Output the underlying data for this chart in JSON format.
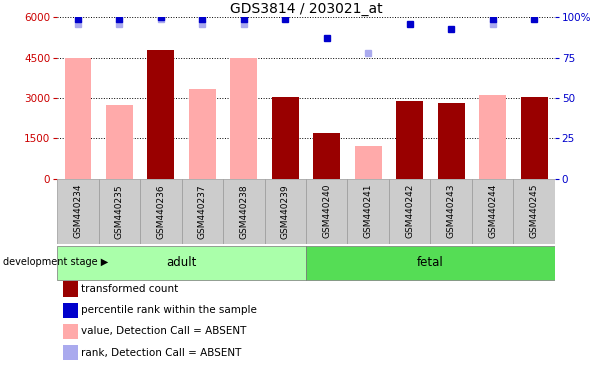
{
  "title": "GDS3814 / 203021_at",
  "samples": [
    "GSM440234",
    "GSM440235",
    "GSM440236",
    "GSM440237",
    "GSM440238",
    "GSM440239",
    "GSM440240",
    "GSM440241",
    "GSM440242",
    "GSM440243",
    "GSM440244",
    "GSM440245"
  ],
  "transformed_count": [
    null,
    null,
    4800,
    null,
    null,
    3050,
    1700,
    null,
    2900,
    2800,
    null,
    3050
  ],
  "value_absent": [
    4500,
    2750,
    null,
    3350,
    4500,
    null,
    null,
    1200,
    null,
    null,
    3100,
    null
  ],
  "percentile_rank": [
    99,
    99,
    100,
    99,
    99,
    99,
    87,
    null,
    96,
    93,
    99,
    99
  ],
  "rank_absent": [
    96,
    96,
    99,
    96,
    96,
    null,
    null,
    78,
    null,
    null,
    96,
    null
  ],
  "adult_range": [
    0,
    5
  ],
  "fetal_range": [
    6,
    11
  ],
  "ylim": [
    0,
    6000
  ],
  "y2lim": [
    0,
    100
  ],
  "yticks": [
    0,
    1500,
    3000,
    4500,
    6000
  ],
  "y2ticks": [
    0,
    25,
    50,
    75,
    100
  ],
  "bar_color_dark": "#990000",
  "bar_color_light": "#ffaaaa",
  "dot_color_dark": "#0000cc",
  "dot_color_light": "#aaaaee",
  "adult_color": "#aaffaa",
  "fetal_color": "#55dd55",
  "stage_label": "development stage",
  "legend_items": [
    {
      "label": "transformed count",
      "color": "#990000"
    },
    {
      "label": "percentile rank within the sample",
      "color": "#0000cc"
    },
    {
      "label": "value, Detection Call = ABSENT",
      "color": "#ffaaaa"
    },
    {
      "label": "rank, Detection Call = ABSENT",
      "color": "#aaaaee"
    }
  ]
}
